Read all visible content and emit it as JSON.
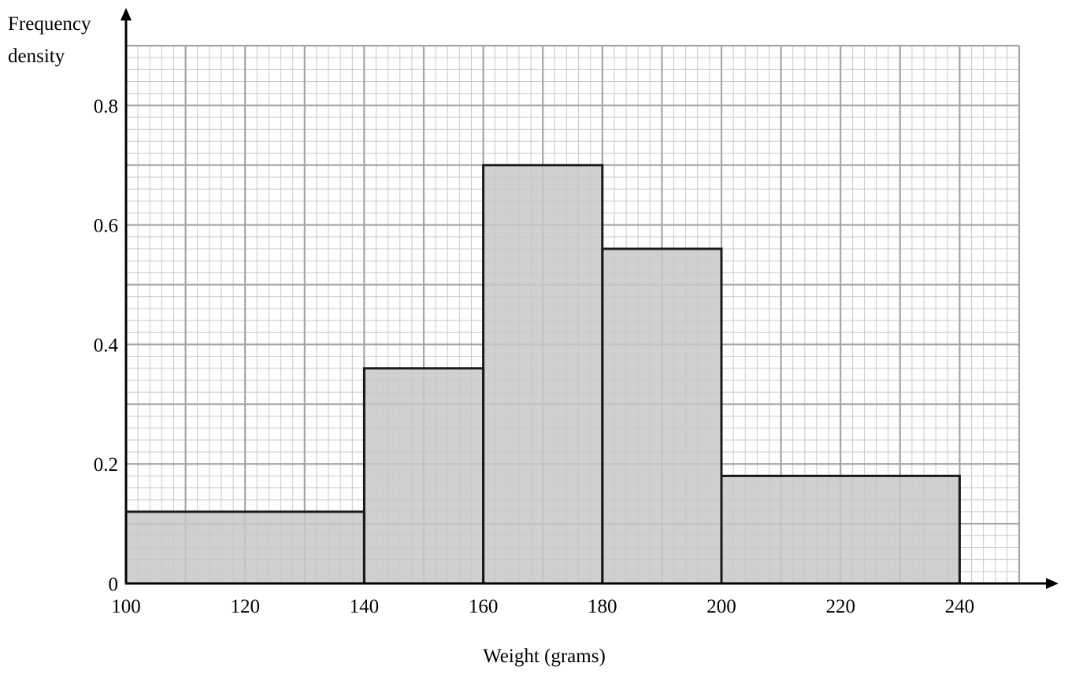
{
  "chart_data": {
    "type": "histogram",
    "title": "",
    "xlabel": "Weight (grams)",
    "ylabel_lines": [
      "Frequency",
      "density"
    ],
    "xlim": [
      100,
      250
    ],
    "ylim": [
      0,
      0.9
    ],
    "x_ticks": [
      100,
      120,
      140,
      160,
      180,
      200,
      220,
      240
    ],
    "x_tick_labels": [
      "100",
      "120",
      "140",
      "160",
      "180",
      "200",
      "220",
      "240"
    ],
    "y_ticks": [
      0,
      0.2,
      0.4,
      0.6,
      0.8
    ],
    "y_tick_labels": [
      "0",
      "0.2",
      "0.4",
      "0.6",
      "0.8"
    ],
    "bins": [
      {
        "from": 100,
        "to": 140,
        "density": 0.12
      },
      {
        "from": 140,
        "to": 160,
        "density": 0.36
      },
      {
        "from": 160,
        "to": 180,
        "density": 0.7
      },
      {
        "from": 180,
        "to": 200,
        "density": 0.56
      },
      {
        "from": 200,
        "to": 240,
        "density": 0.18
      }
    ],
    "grid": true,
    "colors": {
      "bar_fill": "#c8c8c8",
      "bar_stroke": "#1a1a1a",
      "grid_major": "#a6a6a6",
      "grid_minor": "#c9c9c9",
      "axis": "#000000"
    }
  }
}
